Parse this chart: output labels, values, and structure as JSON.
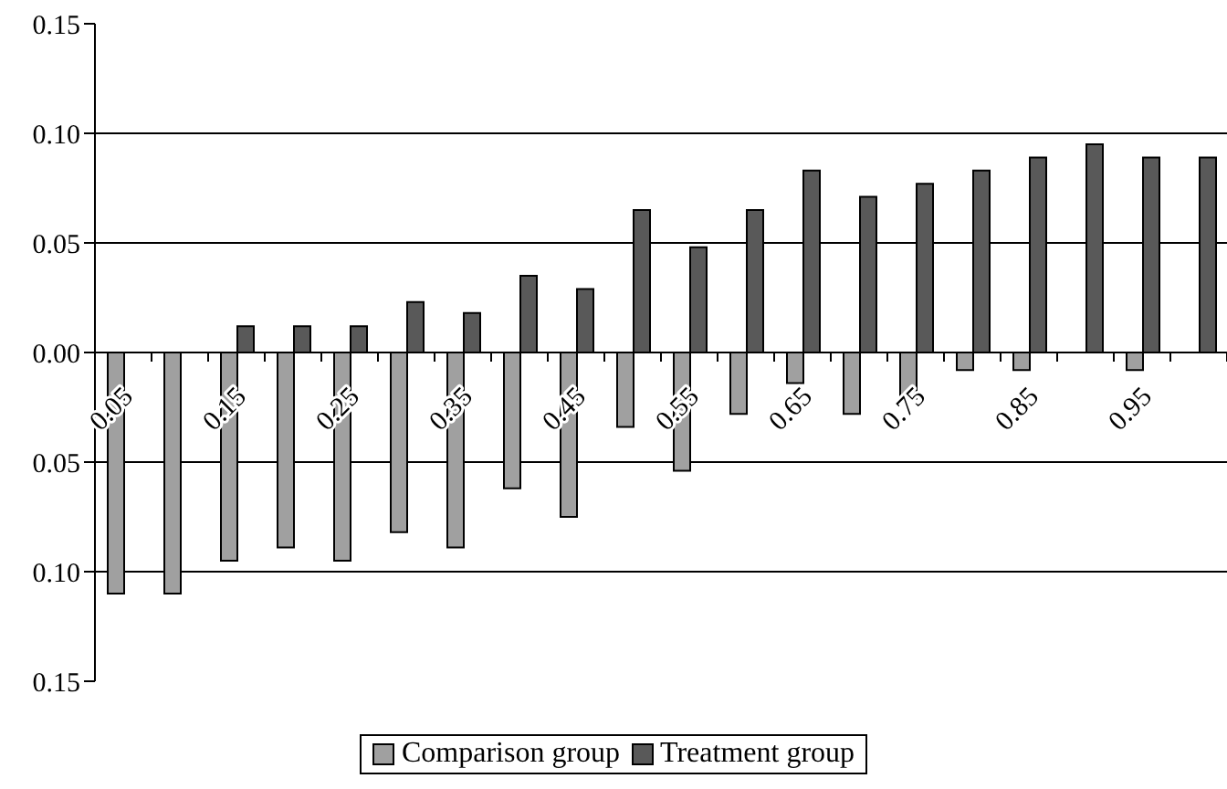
{
  "chart_data": {
    "type": "bar",
    "categories": [
      "0.05",
      null,
      "0.15",
      null,
      "0.25",
      null,
      "0.35",
      null,
      "0.45",
      null,
      "0.55",
      null,
      "0.65",
      null,
      "0.75",
      null,
      "0.85",
      null,
      "0.95",
      null
    ],
    "series": [
      {
        "name": "Comparison group",
        "color": "#a0a0a0",
        "values": [
          -0.11,
          -0.11,
          -0.095,
          -0.089,
          -0.095,
          -0.082,
          -0.089,
          -0.062,
          -0.075,
          -0.034,
          -0.054,
          -0.028,
          -0.014,
          -0.028,
          -0.021,
          -0.008,
          -0.008,
          null,
          -0.008,
          null
        ]
      },
      {
        "name": "Treatment group",
        "color": "#595959",
        "values": [
          null,
          null,
          0.012,
          0.012,
          0.012,
          0.023,
          0.018,
          0.035,
          0.029,
          0.065,
          0.048,
          0.065,
          0.083,
          0.071,
          0.077,
          0.083,
          0.089,
          0.095,
          0.089,
          0.089
        ]
      }
    ],
    "ylim": [
      -0.15,
      0.15
    ],
    "yticks": [
      0.15,
      {
        "value": 0.1,
        "label": "0.10"
      },
      0.05,
      {
        "value": 0,
        "label": "0.00"
      },
      {
        "value": -0.05,
        "label": "0.05"
      },
      {
        "value": -0.1,
        "label": "0.10"
      },
      {
        "value": -0.15,
        "label": "0.15"
      }
    ],
    "grid": "y",
    "legend": "bottom"
  }
}
